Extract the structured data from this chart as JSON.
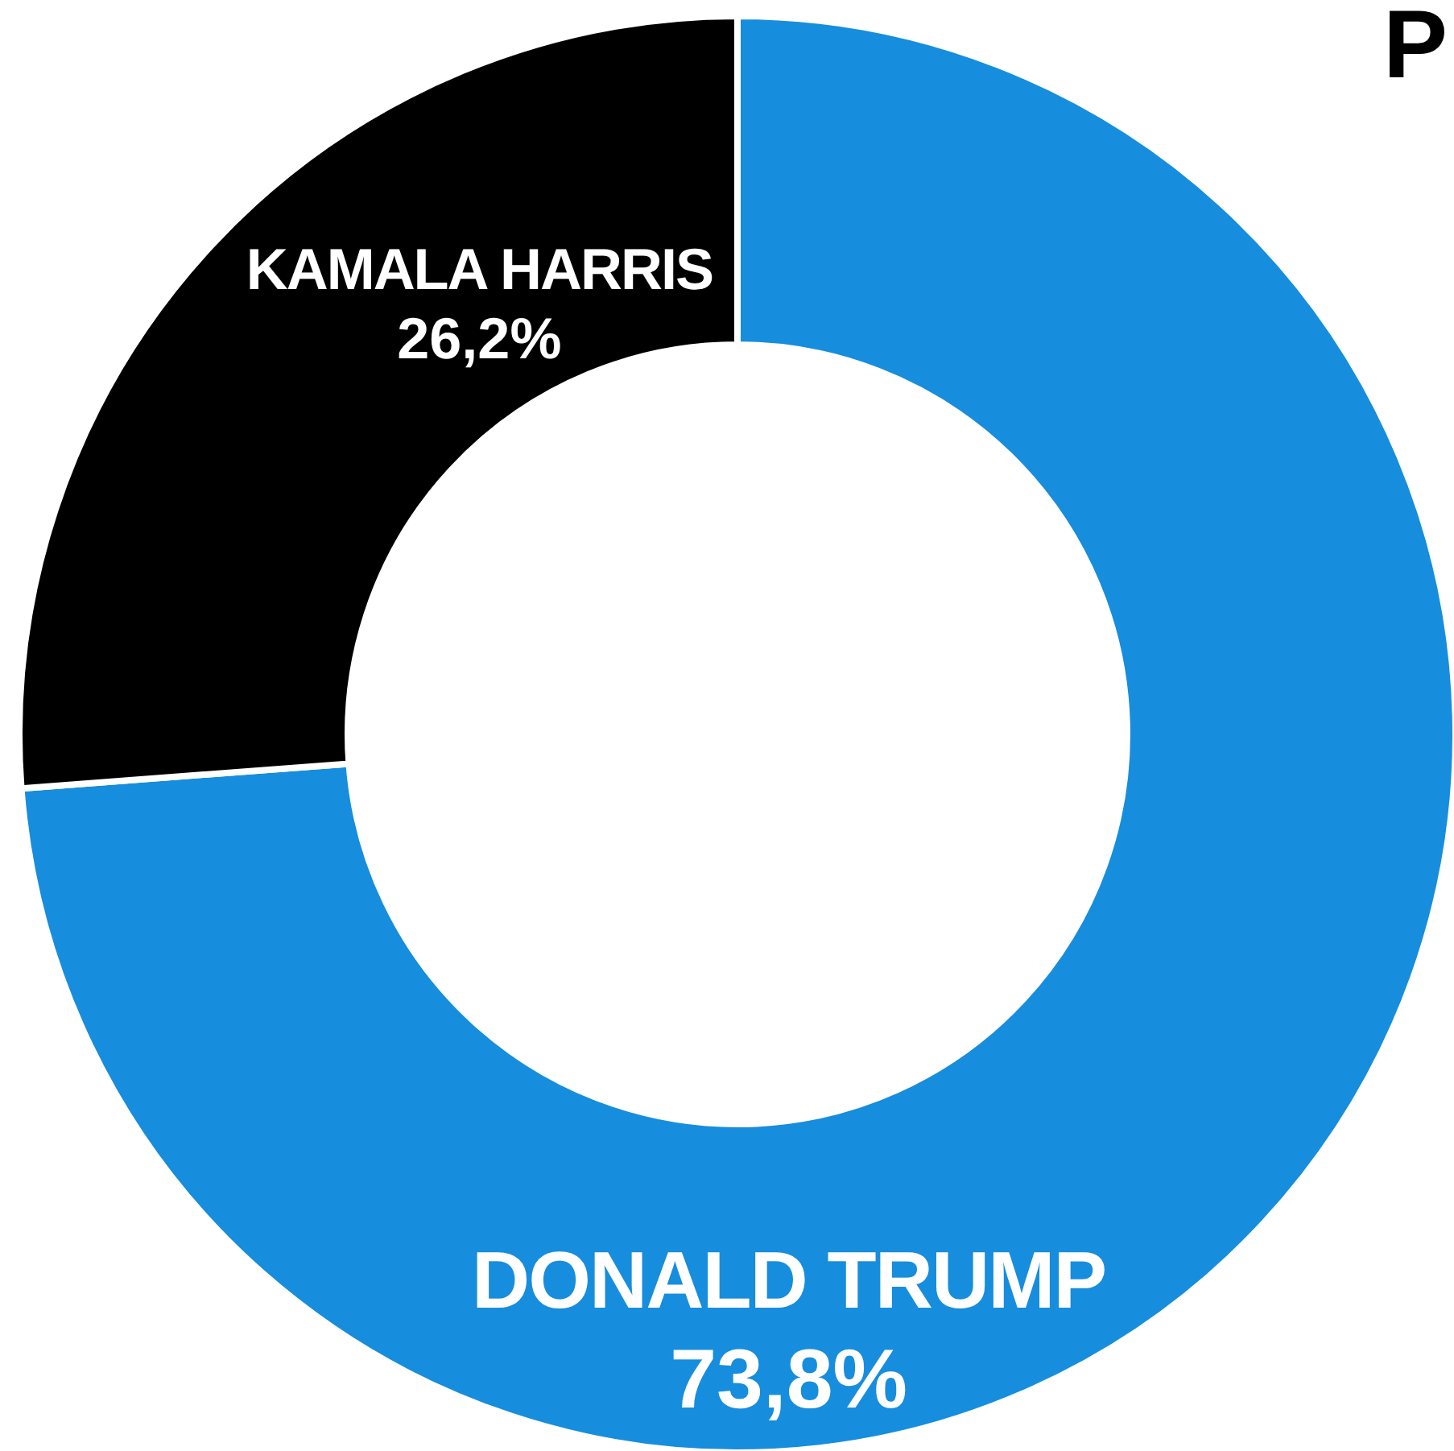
{
  "chart_data": {
    "type": "donut",
    "title": "P",
    "categories": [
      "DONALD TRUMP",
      "KAMALA HARRIS"
    ],
    "values": [
      73.8,
      26.2
    ],
    "colors": [
      "#168ddd",
      "#000000"
    ],
    "value_labels": [
      "73,8%",
      "26,2%"
    ]
  }
}
